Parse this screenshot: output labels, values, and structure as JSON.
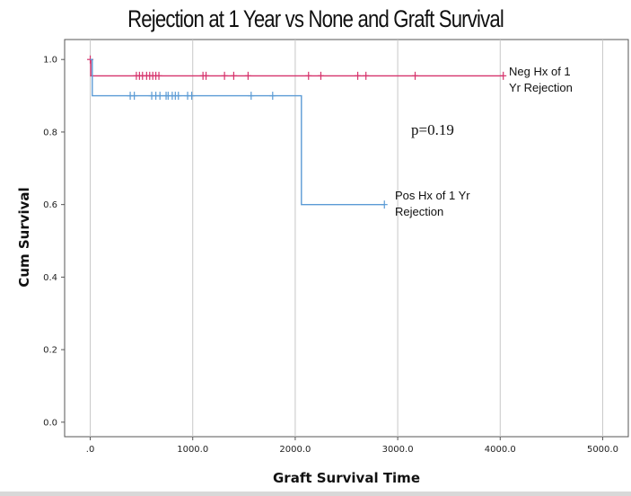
{
  "chart_data": {
    "type": "line",
    "title": "Rejection at 1 Year vs None and Graft Survival",
    "xlabel": "Graft Survival Time",
    "ylabel": "Cum Survival",
    "xlim": [
      -250,
      5250
    ],
    "ylim": [
      -0.04,
      1.055
    ],
    "x_ticks": [
      0,
      1000,
      2000,
      3000,
      4000,
      5000
    ],
    "x_tick_labels": [
      ".0",
      "1000.0",
      "2000.0",
      "3000.0",
      "4000.0",
      "5000.0"
    ],
    "y_ticks": [
      0.0,
      0.2,
      0.4,
      0.6,
      0.8,
      1.0
    ],
    "y_tick_labels": [
      "0.0",
      "0.2",
      "0.4",
      "0.6",
      "0.8",
      "1.0"
    ],
    "grid": "vertical",
    "annotation": "p=0.19",
    "series": [
      {
        "name": "Neg Hx of 1 Yr Rejection",
        "label_lines": [
          "Neg Hx of 1",
          "Yr Rejection"
        ],
        "color": "#d6336c",
        "steps": [
          [
            0,
            1.0
          ],
          [
            5,
            1.0
          ],
          [
            5,
            0.955
          ],
          [
            4030,
            0.955
          ]
        ],
        "censored": [
          [
            0,
            1.0
          ],
          [
            450,
            0.955
          ],
          [
            480,
            0.955
          ],
          [
            510,
            0.955
          ],
          [
            550,
            0.955
          ],
          [
            580,
            0.955
          ],
          [
            610,
            0.955
          ],
          [
            640,
            0.955
          ],
          [
            670,
            0.955
          ],
          [
            1100,
            0.955
          ],
          [
            1130,
            0.955
          ],
          [
            1310,
            0.955
          ],
          [
            1400,
            0.955
          ],
          [
            1540,
            0.955
          ],
          [
            2130,
            0.955
          ],
          [
            2250,
            0.955
          ],
          [
            2610,
            0.955
          ],
          [
            2690,
            0.955
          ],
          [
            3170,
            0.955
          ],
          [
            4030,
            0.955
          ]
        ]
      },
      {
        "name": "Pos Hx of 1 Yr Rejection",
        "label_lines": [
          "Pos Hx of 1 Yr",
          "Rejection"
        ],
        "color": "#5b9bd5",
        "steps": [
          [
            0,
            1.0
          ],
          [
            20,
            1.0
          ],
          [
            20,
            0.9
          ],
          [
            2060,
            0.9
          ],
          [
            2060,
            0.6
          ],
          [
            2870,
            0.6
          ]
        ],
        "censored": [
          [
            390,
            0.9
          ],
          [
            430,
            0.9
          ],
          [
            600,
            0.9
          ],
          [
            640,
            0.9
          ],
          [
            680,
            0.9
          ],
          [
            740,
            0.9
          ],
          [
            760,
            0.9
          ],
          [
            800,
            0.9
          ],
          [
            830,
            0.9
          ],
          [
            860,
            0.9
          ],
          [
            950,
            0.9
          ],
          [
            990,
            0.9
          ],
          [
            1570,
            0.9
          ],
          [
            1780,
            0.9
          ],
          [
            2870,
            0.6
          ]
        ]
      }
    ]
  }
}
